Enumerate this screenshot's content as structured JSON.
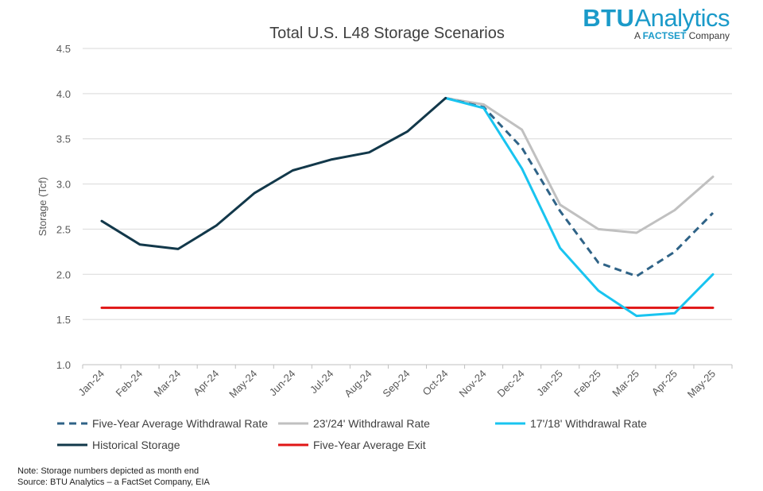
{
  "logo": {
    "brand_bold": "BTU",
    "brand_rest": "Analytics",
    "sub_prefix": "A ",
    "sub_bold": "FACTSET",
    "sub_rest": " Company"
  },
  "notes": {
    "line1": "Note: Storage numbers depicted as month end",
    "line2": "Source: BTU Analytics – a FactSet Company, EIA"
  },
  "chart_data": {
    "type": "line",
    "title": "Total U.S. L48 Storage Scenarios",
    "xlabel": "",
    "ylabel": "Storage (Tcf)",
    "ylim": [
      1.0,
      4.5
    ],
    "yticks": [
      1.0,
      1.5,
      2.0,
      2.5,
      3.0,
      3.5,
      4.0,
      4.5
    ],
    "ytick_labels": [
      "1.0",
      "1.5",
      "2.0",
      "2.5",
      "3.0",
      "3.5",
      "4.0",
      "4.5"
    ],
    "grid": "horizontal",
    "categories": [
      "Jan-24",
      "Feb-24",
      "Mar-24",
      "Apr-24",
      "May-24",
      "Jun-24",
      "Jul-24",
      "Aug-24",
      "Sep-24",
      "Oct-24",
      "Nov-24",
      "Dec-24",
      "Jan-25",
      "Feb-25",
      "Mar-25",
      "Apr-25",
      "May-25"
    ],
    "series": [
      {
        "name": "Five-Year Average Withdrawal Rate",
        "color": "#2f6387",
        "dash": true,
        "values": [
          null,
          null,
          null,
          null,
          null,
          null,
          null,
          null,
          null,
          3.95,
          3.85,
          3.4,
          2.7,
          2.13,
          1.98,
          2.25,
          2.68
        ]
      },
      {
        "name": "23'/24' Withdrawal Rate",
        "color": "#c0c0c0",
        "dash": false,
        "values": [
          null,
          null,
          null,
          null,
          null,
          null,
          null,
          null,
          null,
          3.95,
          3.88,
          3.6,
          2.77,
          2.5,
          2.46,
          2.71,
          3.08
        ]
      },
      {
        "name": "17'/18' Withdrawal Rate",
        "color": "#19c4f0",
        "dash": false,
        "values": [
          null,
          null,
          null,
          null,
          null,
          null,
          null,
          null,
          null,
          3.95,
          3.84,
          3.17,
          2.29,
          1.82,
          1.54,
          1.57,
          2.0
        ]
      },
      {
        "name": "Historical Storage",
        "color": "#12384a",
        "dash": false,
        "values": [
          2.59,
          2.33,
          2.28,
          2.54,
          2.9,
          3.15,
          3.27,
          3.35,
          3.58,
          3.95,
          null,
          null,
          null,
          null,
          null,
          null,
          null
        ]
      },
      {
        "name": "Five-Year Average Exit",
        "color": "#e01616",
        "dash": false,
        "values": [
          1.63,
          1.63,
          1.63,
          1.63,
          1.63,
          1.63,
          1.63,
          1.63,
          1.63,
          1.63,
          1.63,
          1.63,
          1.63,
          1.63,
          1.63,
          1.63,
          1.63
        ]
      }
    ],
    "legend": "bottom"
  }
}
